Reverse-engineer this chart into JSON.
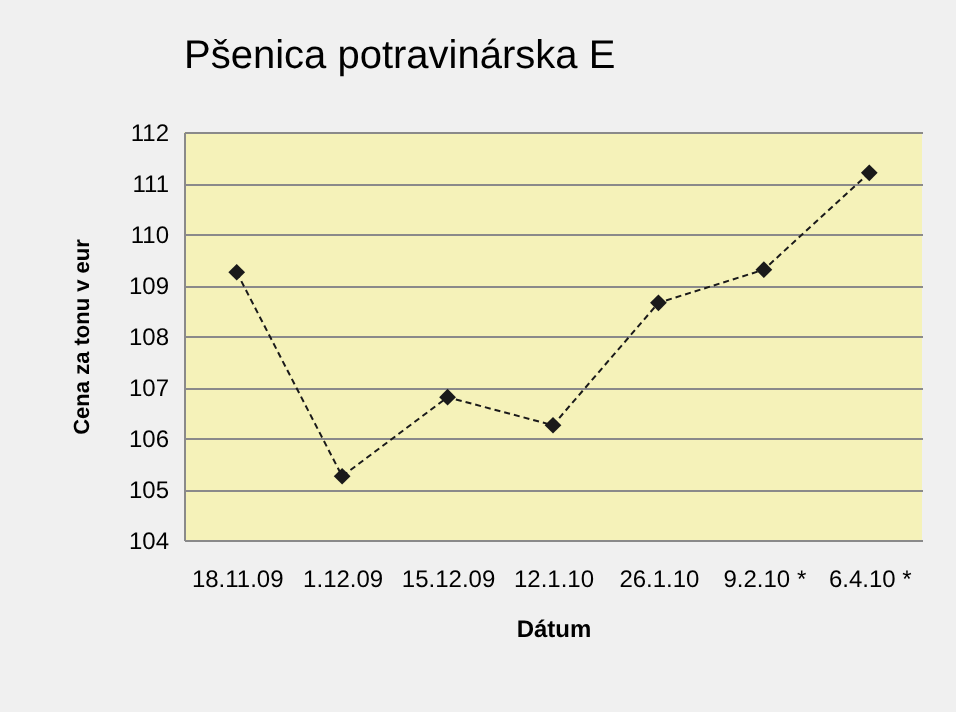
{
  "chart_data": {
    "type": "line",
    "title": "Pšenica potravinárska E",
    "xlabel": "Dátum",
    "ylabel": "Cena za tonu v eur",
    "categories": [
      "18.11.09",
      "1.12.09",
      "15.12.09",
      "12.1.10",
      "26.1.10",
      "9.2.10 *",
      "6.4.10 *"
    ],
    "series": [
      {
        "color": "#1a1a1a",
        "values": [
          109.25,
          105.25,
          106.8,
          106.25,
          108.65,
          109.3,
          111.2
        ]
      }
    ],
    "ylim": [
      104,
      112
    ],
    "yticks": [
      104,
      105,
      106,
      107,
      108,
      109,
      110,
      111,
      112
    ],
    "grid": "y",
    "marker": "diamond",
    "line_style": "dashed",
    "legend": false
  }
}
